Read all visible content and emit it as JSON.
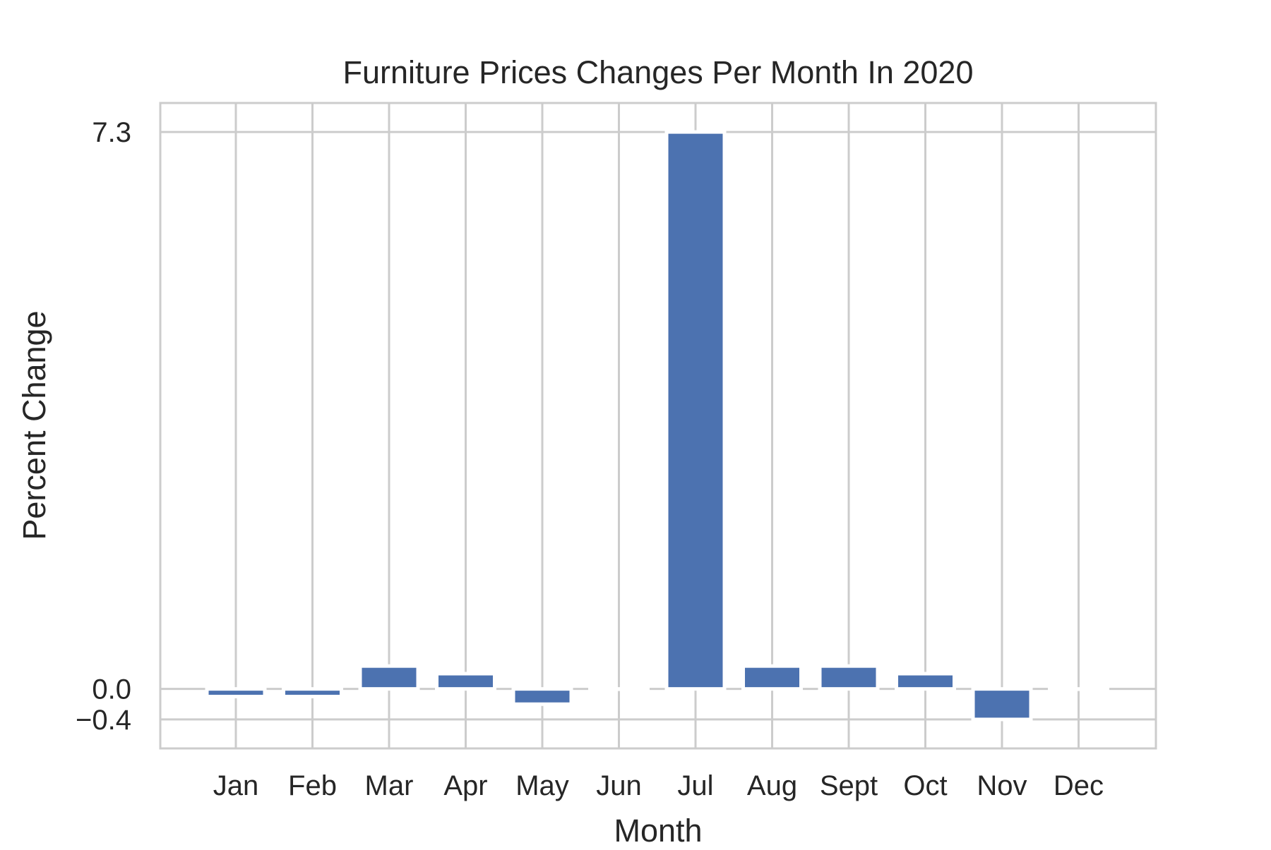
{
  "chart_data": {
    "type": "bar",
    "title": "Furniture Prices Changes Per Month In 2020",
    "xlabel": "Month",
    "ylabel": "Percent Change",
    "categories": [
      "Jan",
      "Feb",
      "Mar",
      "Apr",
      "May",
      "Jun",
      "Jul",
      "Aug",
      "Sept",
      "Oct",
      "Nov",
      "Dec"
    ],
    "values": [
      -0.1,
      -0.1,
      0.3,
      0.2,
      -0.2,
      0.0,
      7.3,
      0.3,
      0.3,
      0.2,
      -0.4,
      0.0
    ],
    "yticks": [
      -0.4,
      0.0,
      7.3
    ],
    "ytick_labels": [
      "−0.4",
      "0.0",
      "7.3"
    ],
    "ylim": [
      -0.78,
      7.68
    ],
    "grid": true,
    "legend": "none",
    "colors": {
      "bar": "#4c72b0",
      "grid": "#cccccc",
      "frame": "#cccccc",
      "text": "#262626",
      "background": "#ffffff"
    }
  }
}
